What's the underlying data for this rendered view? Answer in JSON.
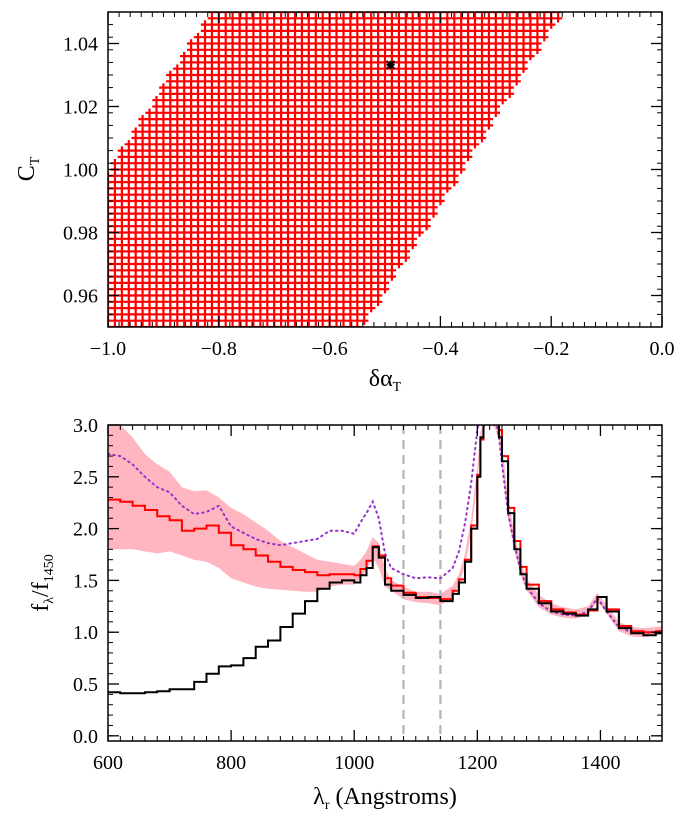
{
  "chart_data": [
    {
      "type": "scatter",
      "xlabel": {
        "main": "δα",
        "sub": "T"
      },
      "ylabel": {
        "main": "C",
        "sub": "T"
      },
      "xlim": [
        -1.0,
        0.0
      ],
      "ylim": [
        0.95,
        1.05
      ],
      "xticks": [
        -1.0,
        -0.8,
        -0.6,
        -0.4,
        -0.2,
        0.0
      ],
      "xtick_labels": [
        "−1.0",
        "−0.8",
        "−0.6",
        "−0.4",
        "−0.2",
        "0.0"
      ],
      "yticks": [
        0.96,
        0.98,
        1.0,
        1.02,
        1.04
      ],
      "ytick_labels": [
        "0.96",
        "0.98",
        "1.00",
        "1.02",
        "1.04"
      ],
      "grid": false,
      "marker": "plus",
      "marker_color": "#ff0000",
      "grid_sampling": {
        "x_step": 0.0125,
        "y_step": 0.002
      },
      "allowed_region": {
        "upper_boundary": [
          [
            -1.0,
            0.9992
          ],
          [
            -0.815,
            1.05
          ]
        ],
        "lower_boundary": [
          [
            -0.54,
            0.95
          ],
          [
            -0.18,
            1.05
          ]
        ]
      },
      "best_fit": {
        "x": -0.49,
        "y": 1.0332,
        "marker": "x",
        "color": "#000000"
      }
    },
    {
      "type": "line",
      "xlabel": {
        "main": "λ",
        "sub": "r",
        "suffix": " (Angstroms)"
      },
      "ylabel": {
        "main": "f",
        "sub": "λ",
        "sep": "/f",
        "sub2": "1450"
      },
      "xlim": [
        600,
        1500
      ],
      "ylim": [
        -0.05,
        3.0
      ],
      "xticks": [
        600,
        800,
        1000,
        1200,
        1400
      ],
      "xtick_labels": [
        "600",
        "800",
        "1000",
        "1200",
        "1400"
      ],
      "yticks": [
        0.0,
        0.5,
        1.0,
        1.5,
        2.0,
        2.5,
        3.0
      ],
      "ytick_labels": [
        "0.0",
        "0.5",
        "1.0",
        "1.5",
        "2.0",
        "2.5",
        "3.0"
      ],
      "grid": false,
      "vlines": [
        1080,
        1140
      ],
      "vline_color": "#b4b4b4",
      "band": {
        "color": "#ffb6c1",
        "x": [
          600,
          620,
          640,
          660,
          680,
          700,
          720,
          740,
          760,
          780,
          800,
          820,
          840,
          860,
          880,
          900,
          920,
          940,
          960,
          980,
          1000,
          1010,
          1020,
          1030,
          1040,
          1050,
          1060,
          1080,
          1100,
          1120,
          1140,
          1160,
          1170,
          1180,
          1190,
          1200,
          1205,
          1210,
          1215,
          1220,
          1225,
          1230,
          1235,
          1240,
          1250,
          1260,
          1270,
          1280,
          1300,
          1320,
          1340,
          1360,
          1380,
          1395,
          1410,
          1430,
          1450,
          1470,
          1490,
          1500
        ],
        "upper": [
          3.0,
          3.0,
          2.88,
          2.72,
          2.62,
          2.55,
          2.4,
          2.36,
          2.37,
          2.3,
          2.2,
          2.14,
          2.06,
          1.98,
          1.88,
          1.82,
          1.76,
          1.7,
          1.68,
          1.66,
          1.64,
          1.7,
          1.78,
          1.92,
          1.86,
          1.62,
          1.5,
          1.44,
          1.39,
          1.39,
          1.37,
          1.45,
          1.56,
          1.76,
          2.1,
          2.6,
          2.92,
          3.05,
          3.1,
          3.1,
          3.1,
          3.1,
          3.05,
          2.8,
          2.3,
          1.96,
          1.7,
          1.52,
          1.36,
          1.28,
          1.24,
          1.22,
          1.25,
          1.38,
          1.26,
          1.1,
          1.05,
          1.04,
          1.05,
          1.06
        ],
        "lower": [
          1.8,
          1.8,
          1.8,
          1.78,
          1.76,
          1.78,
          1.74,
          1.7,
          1.68,
          1.62,
          1.52,
          1.48,
          1.44,
          1.42,
          1.41,
          1.4,
          1.39,
          1.39,
          1.44,
          1.46,
          1.46,
          1.52,
          1.6,
          1.72,
          1.62,
          1.44,
          1.4,
          1.32,
          1.29,
          1.28,
          1.26,
          1.34,
          1.46,
          1.64,
          1.96,
          2.44,
          2.8,
          2.95,
          3.0,
          3.0,
          3.0,
          2.95,
          2.85,
          2.6,
          2.1,
          1.8,
          1.56,
          1.4,
          1.24,
          1.17,
          1.14,
          1.13,
          1.17,
          1.3,
          1.18,
          1.01,
          0.96,
          0.95,
          0.97,
          0.98
        ]
      },
      "series": [
        {
          "color": "#000000",
          "style": "steps",
          "x": [
            600,
            620,
            640,
            660,
            680,
            700,
            720,
            740,
            760,
            780,
            800,
            820,
            840,
            860,
            880,
            900,
            920,
            940,
            960,
            980,
            1000,
            1010,
            1020,
            1030,
            1040,
            1050,
            1060,
            1080,
            1100,
            1120,
            1140,
            1160,
            1170,
            1180,
            1190,
            1200,
            1205,
            1210,
            1215,
            1220,
            1225,
            1230,
            1235,
            1240,
            1250,
            1260,
            1270,
            1280,
            1300,
            1320,
            1340,
            1360,
            1380,
            1395,
            1410,
            1430,
            1450,
            1470,
            1490,
            1500
          ],
          "y": [
            0.42,
            0.41,
            0.41,
            0.42,
            0.43,
            0.45,
            0.45,
            0.52,
            0.6,
            0.67,
            0.68,
            0.75,
            0.86,
            0.92,
            1.05,
            1.18,
            1.3,
            1.42,
            1.48,
            1.5,
            1.48,
            1.55,
            1.62,
            1.82,
            1.72,
            1.46,
            1.4,
            1.36,
            1.33,
            1.34,
            1.3,
            1.37,
            1.48,
            1.68,
            2.0,
            2.5,
            2.88,
            3.05,
            3.1,
            3.1,
            3.1,
            3.05,
            2.88,
            2.65,
            2.15,
            1.8,
            1.56,
            1.42,
            1.28,
            1.2,
            1.18,
            1.16,
            1.22,
            1.34,
            1.2,
            1.04,
            0.99,
            0.97,
            0.99,
            1.01
          ]
        },
        {
          "color": "#ff0000",
          "style": "steps",
          "x": [
            600,
            620,
            640,
            660,
            680,
            700,
            720,
            740,
            760,
            780,
            800,
            820,
            840,
            860,
            880,
            900,
            920,
            940,
            960,
            980,
            1000,
            1010,
            1020,
            1030,
            1040,
            1050,
            1060,
            1080,
            1100,
            1120,
            1140,
            1160,
            1170,
            1180,
            1190,
            1200,
            1205,
            1210,
            1215,
            1220,
            1225,
            1230,
            1235,
            1240,
            1250,
            1260,
            1270,
            1280,
            1300,
            1320,
            1340,
            1360,
            1380,
            1395,
            1410,
            1430,
            1450,
            1470,
            1490,
            1500
          ],
          "y": [
            2.28,
            2.26,
            2.22,
            2.18,
            2.12,
            2.08,
            1.98,
            2.0,
            2.03,
            1.96,
            1.84,
            1.8,
            1.74,
            1.68,
            1.63,
            1.6,
            1.58,
            1.55,
            1.56,
            1.56,
            1.55,
            1.61,
            1.69,
            1.83,
            1.74,
            1.52,
            1.45,
            1.38,
            1.34,
            1.33,
            1.32,
            1.4,
            1.51,
            1.7,
            2.03,
            2.52,
            2.86,
            3.02,
            3.1,
            3.1,
            3.1,
            3.02,
            2.95,
            2.7,
            2.2,
            1.88,
            1.63,
            1.46,
            1.3,
            1.22,
            1.19,
            1.17,
            1.21,
            1.34,
            1.22,
            1.06,
            1.01,
            1.0,
            1.01,
            1.02
          ]
        },
        {
          "color": "#9932cc",
          "style": "dotted",
          "x": [
            600,
            620,
            640,
            660,
            680,
            700,
            720,
            740,
            760,
            780,
            800,
            820,
            840,
            860,
            880,
            900,
            920,
            940,
            960,
            980,
            1000,
            1010,
            1020,
            1030,
            1040,
            1050,
            1060,
            1080,
            1100,
            1120,
            1140,
            1160,
            1170,
            1180,
            1190,
            1200,
            1205,
            1210,
            1215,
            1220,
            1225,
            1230,
            1235,
            1240,
            1250,
            1260,
            1270,
            1280,
            1300,
            1320,
            1340,
            1360,
            1380,
            1395,
            1410,
            1430,
            1450,
            1470,
            1490,
            1500
          ],
          "y": [
            2.72,
            2.7,
            2.62,
            2.5,
            2.4,
            2.35,
            2.22,
            2.14,
            2.16,
            2.22,
            2.02,
            1.96,
            1.9,
            1.86,
            1.84,
            1.86,
            1.88,
            1.9,
            1.98,
            1.98,
            1.95,
            2.06,
            2.15,
            2.26,
            2.1,
            1.76,
            1.62,
            1.56,
            1.52,
            1.53,
            1.52,
            1.62,
            1.78,
            2.05,
            2.44,
            2.95,
            3.1,
            3.1,
            3.1,
            3.1,
            3.1,
            3.05,
            2.9,
            2.62,
            2.15,
            1.85,
            1.6,
            1.44,
            1.28,
            1.2,
            1.17,
            1.16,
            1.2,
            1.33,
            1.2,
            1.05,
            1.0,
            0.99,
            1.0,
            1.02
          ]
        }
      ]
    }
  ]
}
